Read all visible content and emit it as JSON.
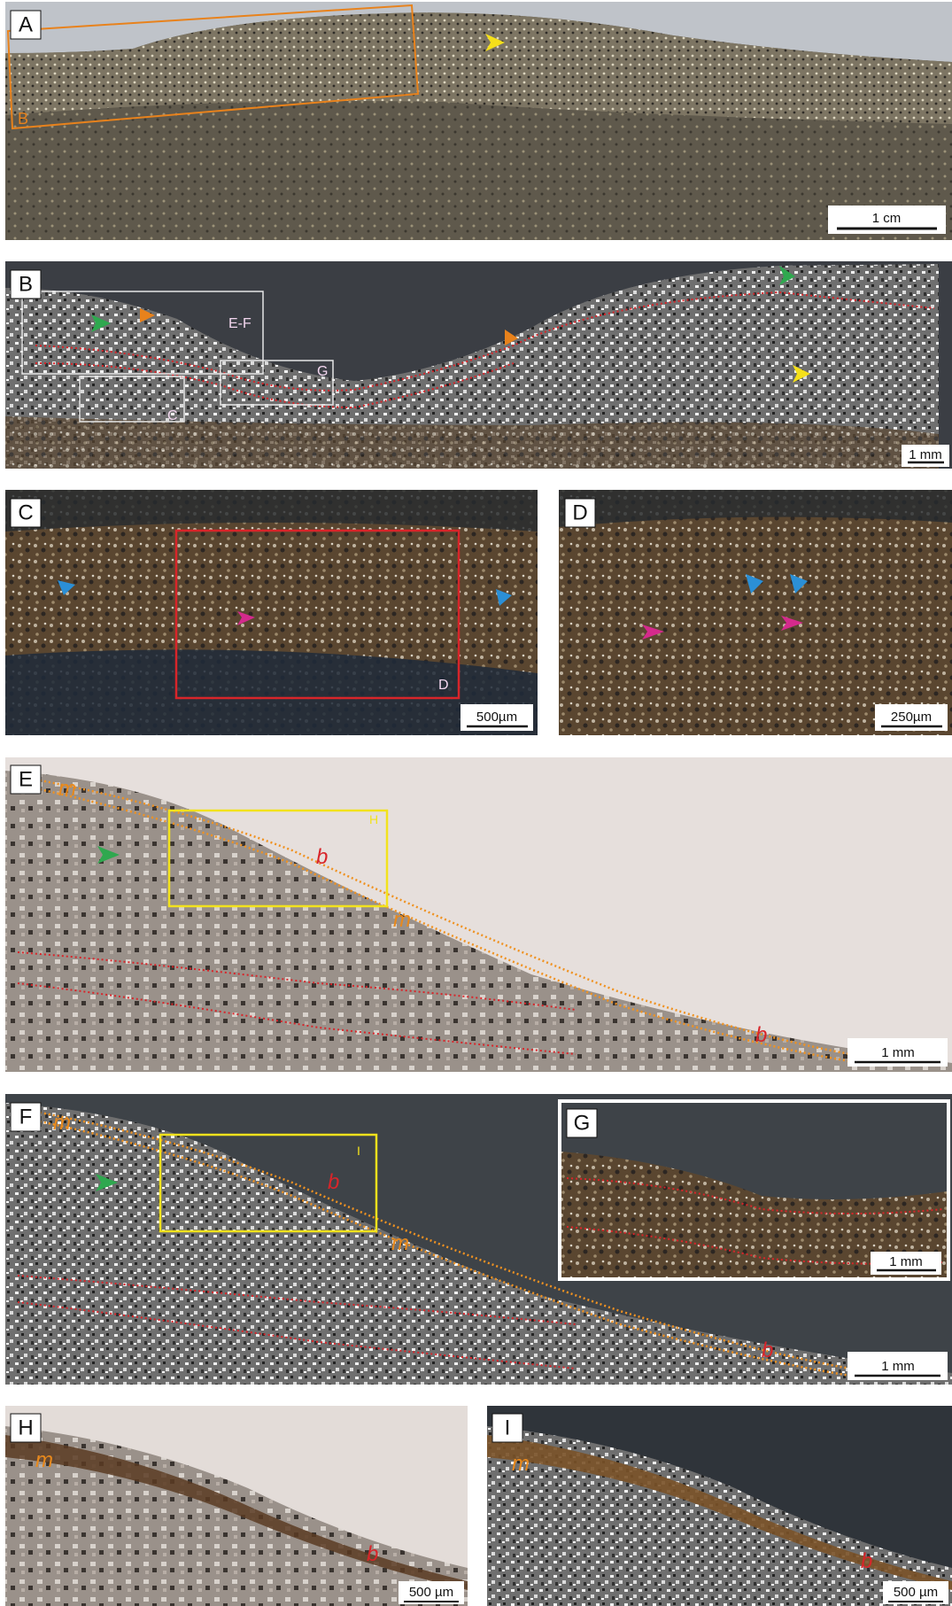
{
  "panels": [
    {
      "label": "A",
      "annotations": [
        "B"
      ],
      "scale_bar": "1 cm"
    },
    {
      "label": "B",
      "annotations": [
        "E-F",
        "G",
        "C"
      ],
      "scale_bar": "1 mm"
    },
    {
      "label": "C",
      "annotations": [
        "D"
      ],
      "scale_bar": "500µm"
    },
    {
      "label": "D",
      "scale_bar": "250µm"
    },
    {
      "label": "E",
      "annotations": [
        "m",
        "b",
        "H",
        "m",
        "b"
      ],
      "scale_bar": "1 mm"
    },
    {
      "label": "F",
      "annotations": [
        "m",
        "b",
        "I",
        "m",
        "b"
      ],
      "scale_bar": "1 mm"
    },
    {
      "label": "G",
      "scale_bar": "1 mm"
    },
    {
      "label": "H",
      "annotations": [
        "m",
        "b"
      ],
      "scale_bar": "500 µm"
    },
    {
      "label": "I",
      "annotations": [
        "m",
        "b"
      ],
      "scale_bar": "500 µm"
    }
  ]
}
